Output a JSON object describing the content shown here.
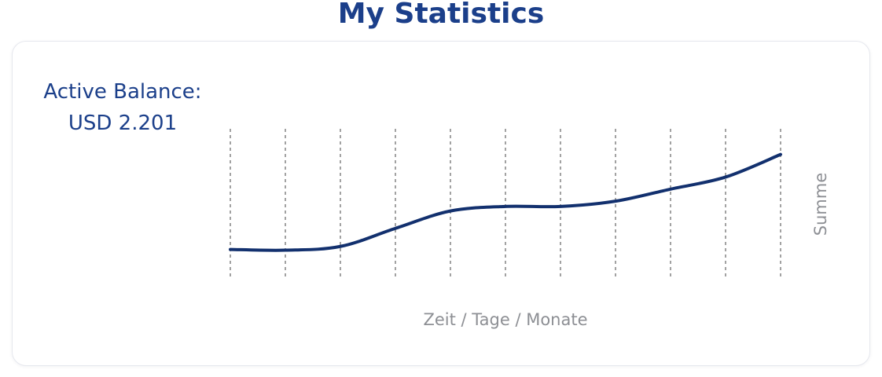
{
  "header": {
    "title": "My Statistics"
  },
  "card": {
    "balance_label": "Active Balance:",
    "balance_value": "USD 2.201"
  },
  "chart_data": {
    "type": "line",
    "xlabel": "Zeit / Tage / Monate",
    "ylabel": "Summe",
    "grid": "vertical-dashed",
    "x": [
      0,
      1,
      2,
      3,
      4,
      5,
      6,
      7,
      8,
      9,
      10
    ],
    "series": [
      {
        "values": [
          20,
          19.5,
          22,
          34,
          45.5,
          48.5,
          48.5,
          52,
          60,
          68,
          83
        ]
      }
    ],
    "ylim": [
      0,
      100
    ],
    "line_color": "#12306e"
  },
  "colors": {
    "title": "#1b3f8a",
    "line": "#12306e",
    "axis_text": "#8d8f94",
    "grid": "#444444"
  }
}
